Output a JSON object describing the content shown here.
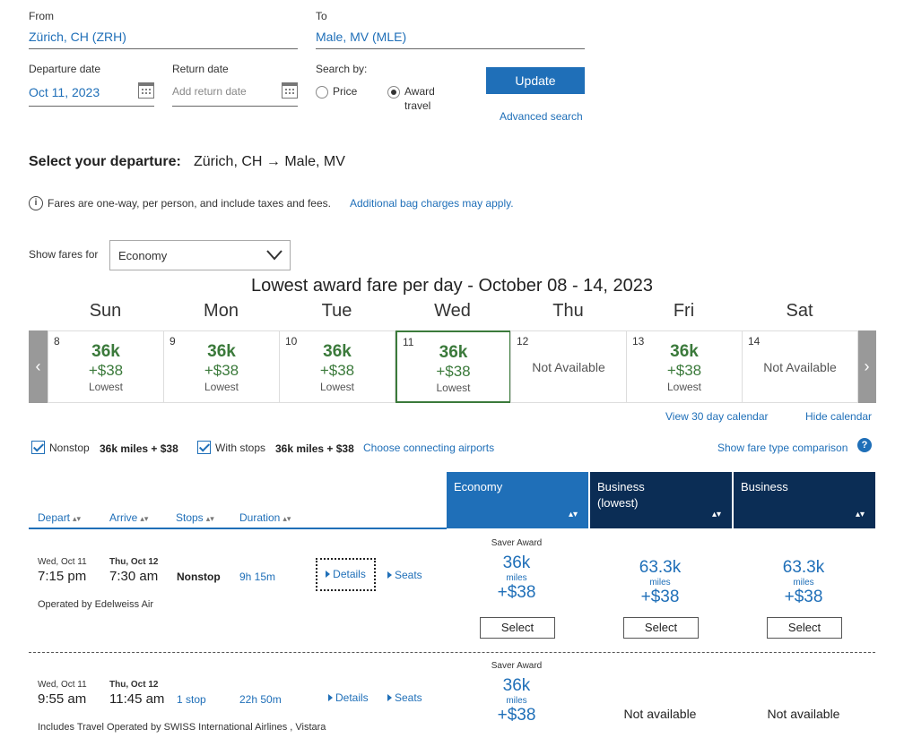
{
  "search": {
    "from_label": "From",
    "from_value": "Zürich, CH (ZRH)",
    "to_label": "To",
    "to_value": "Male, MV (MLE)",
    "departure_label": "Departure date",
    "departure_value": "Oct 11, 2023",
    "return_label": "Return date",
    "return_placeholder": "Add return date",
    "search_by_label": "Search by:",
    "option_price": "Price",
    "option_award": "Award travel",
    "option_award_line1": "Award",
    "option_award_line2": "travel",
    "update_button": "Update",
    "advanced_search": "Advanced search"
  },
  "heading": {
    "prefix": "Select your departure:",
    "route": "Zürich, CH → Male, MV"
  },
  "notice": {
    "text": "Fares are one-way, per person, and include taxes and fees.",
    "link": "Additional bag charges may apply."
  },
  "fares_for": {
    "label": "Show fares for",
    "selected": "Economy"
  },
  "calendar": {
    "title": "Lowest award fare per day - October 08 - 14, 2023",
    "days": [
      {
        "name": "Sun",
        "num": "8",
        "miles": "36k",
        "tax": "+$38",
        "note": "Lowest",
        "available": true
      },
      {
        "name": "Mon",
        "num": "9",
        "miles": "36k",
        "tax": "+$38",
        "note": "Lowest",
        "available": true
      },
      {
        "name": "Tue",
        "num": "10",
        "miles": "36k",
        "tax": "+$38",
        "note": "Lowest",
        "available": true
      },
      {
        "name": "Wed",
        "num": "11",
        "miles": "36k",
        "tax": "+$38",
        "note": "Lowest",
        "available": true
      },
      {
        "name": "Thu",
        "num": "12",
        "na": "Not Available",
        "available": false
      },
      {
        "name": "Fri",
        "num": "13",
        "miles": "36k",
        "tax": "+$38",
        "note": "Lowest",
        "available": true
      },
      {
        "name": "Sat",
        "num": "14",
        "na": "Not Available",
        "available": false
      }
    ],
    "selected_index": 3,
    "view30": "View 30 day calendar",
    "hide": "Hide calendar"
  },
  "filters": {
    "nonstop_label": "Nonstop",
    "nonstop_price": "36k miles + $38",
    "withstops_label": "With stops",
    "withstops_price": "36k miles + $38",
    "connecting": "Choose connecting airports",
    "compare": "Show fare type comparison"
  },
  "columns": {
    "depart": "Depart",
    "arrive": "Arrive",
    "stops": "Stops",
    "duration": "Duration",
    "economy": "Economy",
    "business_lowest_1": "Business",
    "business_lowest_2": "(lowest)",
    "business": "Business"
  },
  "colors": {
    "brand_blue": "#1f6fb8",
    "navy": "#0b2d55",
    "green": "#3b7a3b"
  },
  "flights": [
    {
      "dep_date": "Wed, Oct 11",
      "dep_time": "7:15 pm",
      "arr_date": "Thu, Oct 12",
      "arr_time": "7:30 am",
      "stops": "Nonstop",
      "duration": "9h 15m",
      "details": "Details",
      "seats": "Seats",
      "operated": "Operated by Edelweiss Air",
      "fares": [
        {
          "tag": "Saver Award",
          "miles": "36k",
          "unit": "miles",
          "tax": "+$38",
          "btn": "Select"
        },
        {
          "miles": "63.3k",
          "unit": "miles",
          "tax": "+$38",
          "btn": "Select"
        },
        {
          "miles": "63.3k",
          "unit": "miles",
          "tax": "+$38",
          "btn": "Select"
        }
      ]
    },
    {
      "dep_date": "Wed, Oct 11",
      "dep_time": "9:55 am",
      "arr_date": "Thu, Oct 12",
      "arr_time": "11:45 am",
      "stops": "1 stop",
      "duration": "22h 50m",
      "details": "Details",
      "seats": "Seats",
      "operated": "Includes Travel Operated by SWISS International Airlines , Vistara",
      "fares": [
        {
          "tag": "Saver Award",
          "miles": "36k",
          "unit": "miles",
          "tax": "+$38"
        },
        {
          "na": "Not available"
        },
        {
          "na": "Not available"
        }
      ]
    }
  ]
}
